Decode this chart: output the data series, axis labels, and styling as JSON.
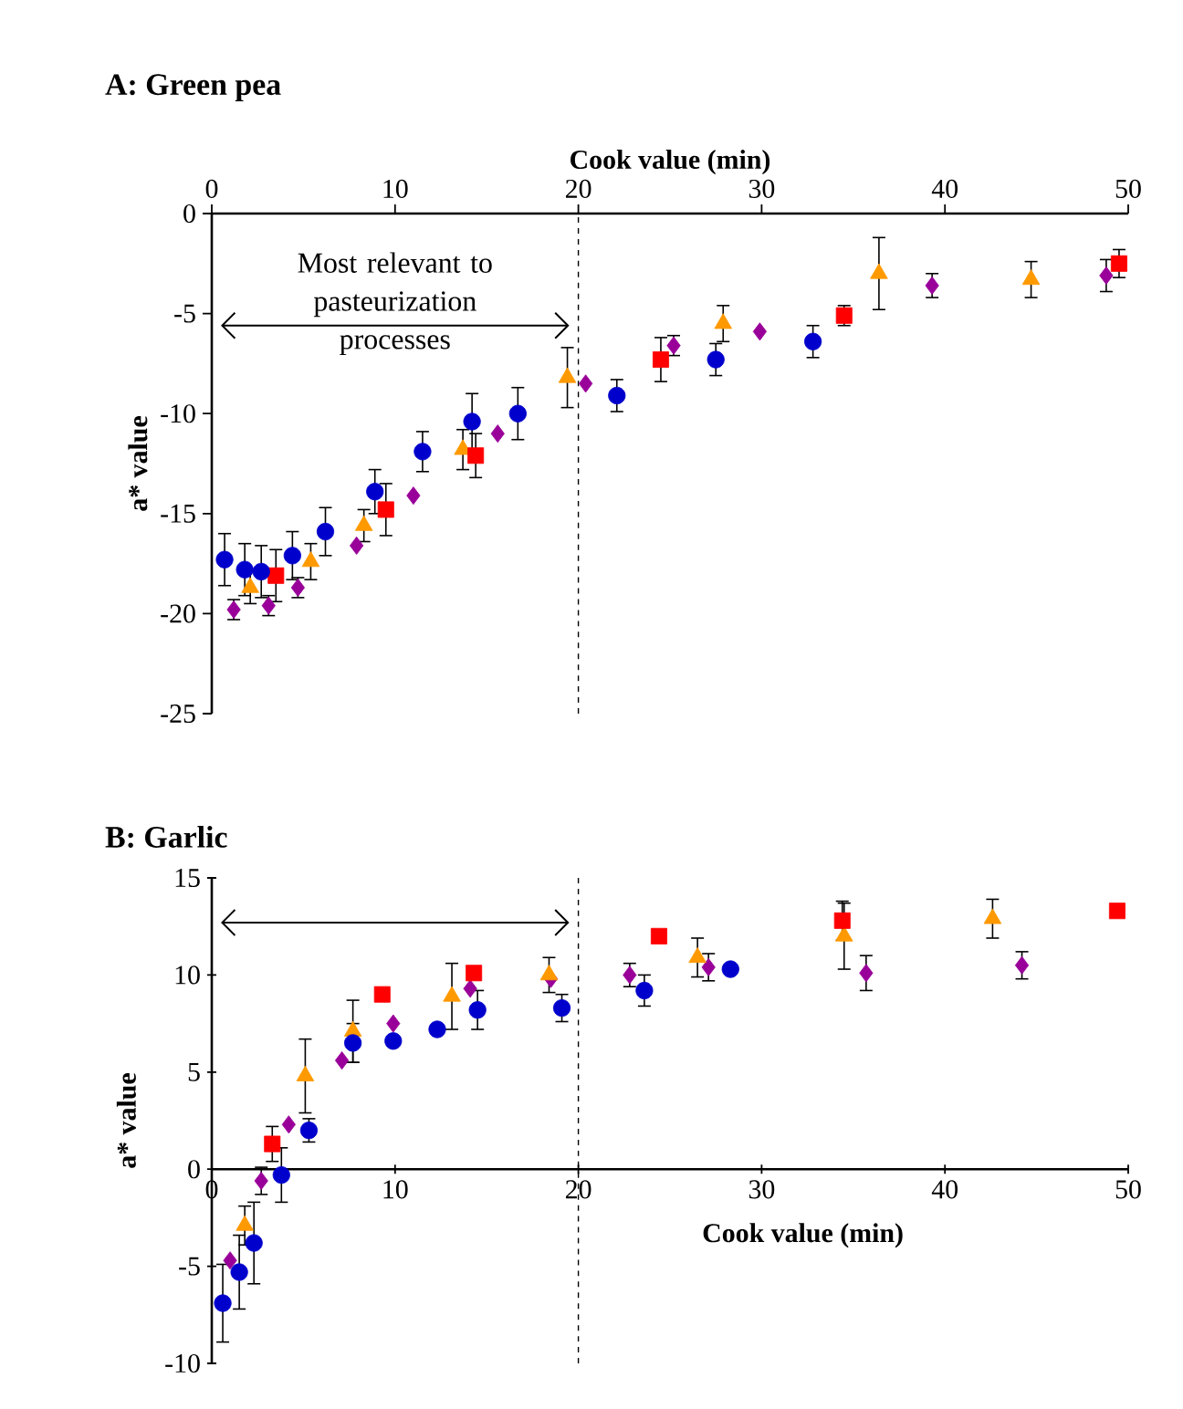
{
  "chart_data": [
    {
      "type": "scatter",
      "title": "A: Green pea",
      "xlabel": "Cook value (min)",
      "ylabel": "a* value",
      "xlim": [
        0,
        50
      ],
      "xticks": [
        0,
        10,
        20,
        30,
        40,
        50
      ],
      "ylim": [
        -25,
        0
      ],
      "yticks": [
        -25,
        -20,
        -15,
        -10,
        -5,
        0
      ],
      "annotations": [
        "Most relevant to pasteurization processes"
      ],
      "ref_lines": [
        {
          "axis": "x",
          "value": 20,
          "line_style": "dashed"
        }
      ],
      "series": [
        {
          "color": "#0000cc",
          "marker": "circle",
          "x": [
            0.7,
            1.8,
            2.7,
            4.4,
            6.2,
            8.9,
            11.5,
            14.2,
            16.7,
            22.1,
            27.5,
            32.8
          ],
          "values": [
            -17.3,
            -17.8,
            -17.9,
            -17.1,
            -15.9,
            -13.9,
            -11.9,
            -10.4,
            -10.0,
            -9.1,
            -7.3,
            -6.4
          ],
          "errors": [
            1.3,
            1.3,
            1.3,
            1.2,
            1.2,
            1.1,
            1.0,
            1.4,
            1.3,
            0.8,
            0.8,
            0.8
          ]
        },
        {
          "color": "#ff0000",
          "marker": "square",
          "x": [
            3.5,
            9.5,
            14.4,
            24.5,
            34.5,
            49.5
          ],
          "values": [
            -18.1,
            -14.8,
            -12.1,
            -7.3,
            -5.1,
            -2.5
          ],
          "errors": [
            1.3,
            1.3,
            1.1,
            1.1,
            0.5,
            0.7
          ]
        },
        {
          "color": "#ff9900",
          "marker": "triangle",
          "x": [
            2.1,
            5.4,
            8.3,
            13.7,
            19.4,
            27.9,
            36.4,
            44.7
          ],
          "values": [
            -18.7,
            -17.4,
            -15.6,
            -11.8,
            -8.2,
            -5.5,
            -3.0,
            -3.3
          ],
          "errors": [
            0.8,
            0.9,
            0.8,
            1.0,
            1.5,
            0.9,
            1.8,
            0.9
          ]
        },
        {
          "color": "#990099",
          "marker": "diamond",
          "x": [
            1.2,
            3.1,
            4.7,
            7.9,
            11.0,
            15.6,
            20.4,
            25.2,
            29.9,
            39.3,
            48.8
          ],
          "values": [
            -19.8,
            -19.6,
            -18.7,
            -16.6,
            -14.1,
            -11.0,
            -8.5,
            -6.6,
            -5.9,
            -3.6,
            -3.1
          ],
          "errors": [
            0.5,
            0.5,
            0.5,
            null,
            null,
            null,
            null,
            0.5,
            null,
            0.6,
            0.8
          ]
        }
      ]
    },
    {
      "type": "scatter",
      "title": "B: Garlic",
      "xlabel": "Cook value (min)",
      "ylabel": "a* value",
      "xlim": [
        0,
        50
      ],
      "xticks": [
        0,
        10,
        20,
        30,
        40,
        50
      ],
      "ylim": [
        -10,
        15
      ],
      "yticks": [
        -10,
        -5,
        0,
        5,
        10,
        15
      ],
      "ref_lines": [
        {
          "axis": "x",
          "value": 20,
          "line_style": "dashed"
        }
      ],
      "series": [
        {
          "color": "#0000cc",
          "marker": "circle",
          "x": [
            0.6,
            1.5,
            2.3,
            3.8,
            5.3,
            7.7,
            9.9,
            12.3,
            14.5,
            19.1,
            23.6,
            28.3
          ],
          "values": [
            -6.9,
            -5.3,
            -3.8,
            -0.3,
            2.0,
            6.5,
            6.6,
            7.2,
            8.2,
            8.3,
            9.2,
            10.3
          ],
          "errors": [
            2.0,
            1.9,
            2.1,
            1.4,
            0.6,
            1.0,
            null,
            null,
            1.0,
            0.7,
            0.8,
            null
          ]
        },
        {
          "color": "#ff0000",
          "marker": "square",
          "x": [
            3.3,
            9.3,
            14.3,
            24.4,
            34.4,
            49.4
          ],
          "values": [
            1.3,
            9.0,
            10.1,
            12.0,
            12.8,
            13.3
          ],
          "errors": [
            0.9,
            null,
            null,
            null,
            1.0,
            null
          ]
        },
        {
          "color": "#ff9900",
          "marker": "triangle",
          "x": [
            1.8,
            5.1,
            7.7,
            13.1,
            18.4,
            26.5,
            34.5,
            42.6
          ],
          "values": [
            -2.9,
            4.8,
            7.1,
            8.9,
            10.0,
            10.9,
            12.0,
            12.9
          ],
          "errors": [
            1.0,
            1.9,
            1.6,
            1.7,
            0.9,
            1.0,
            1.7,
            1.0
          ]
        },
        {
          "color": "#990099",
          "marker": "diamond",
          "x": [
            1.0,
            2.7,
            4.2,
            7.1,
            9.9,
            14.1,
            18.5,
            22.8,
            27.1,
            35.7,
            44.2
          ],
          "values": [
            -4.7,
            -0.6,
            2.3,
            5.6,
            7.5,
            9.3,
            9.8,
            10.0,
            10.4,
            10.1,
            10.5
          ],
          "errors": [
            null,
            0.7,
            null,
            null,
            null,
            null,
            null,
            0.6,
            0.7,
            0.9,
            0.7
          ]
        }
      ]
    }
  ]
}
